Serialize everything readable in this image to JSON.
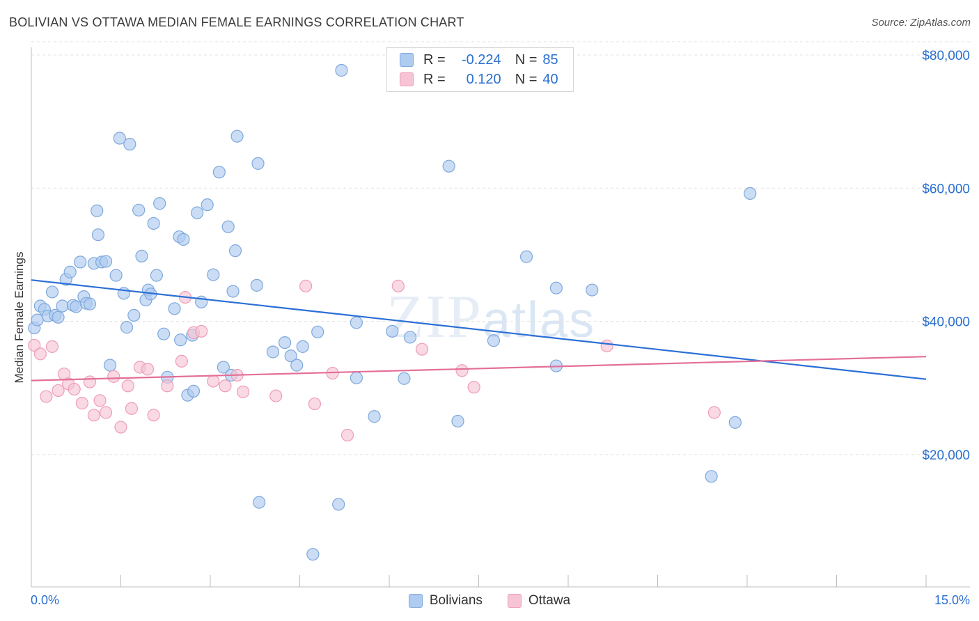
{
  "title": "BOLIVIAN VS OTTAWA MEDIAN FEMALE EARNINGS CORRELATION CHART",
  "source": "Source: ZipAtlas.com",
  "watermark": {
    "a": "ZIP",
    "b": "atlas"
  },
  "legend": {
    "rows": [
      {
        "r_label": "R =",
        "r_value": "-0.224",
        "n_label": "N =",
        "n_value": "85"
      },
      {
        "r_label": "R =",
        "r_value": "0.120",
        "n_label": "N =",
        "n_value": "40"
      }
    ]
  },
  "bottom_legend": [
    "Bolivians",
    "Ottawa"
  ],
  "colors": {
    "blue_fill": "#aecbf0",
    "blue_stroke": "#7fa8dc",
    "blue_line": "#2b6fd6",
    "pink_fill": "#f6c4d4",
    "pink_stroke": "#ef9db7",
    "pink_line": "#e36f98",
    "axis_text": "#2a6fd1",
    "grid": "#e3e3e3"
  },
  "chart_data": {
    "type": "scatter",
    "title": "BOLIVIAN VS OTTAWA MEDIAN FEMALE EARNINGS CORRELATION CHART",
    "xlabel": "",
    "ylabel": "Median Female Earnings",
    "xlim": [
      0,
      15
    ],
    "ylim": [
      0,
      82000
    ],
    "x_tick_labels": [
      "0.0%",
      "15.0%"
    ],
    "y_ticks": [
      20000,
      40000,
      60000,
      80000
    ],
    "y_tick_labels": [
      "$20,000",
      "$40,000",
      "$60,000",
      "$80,000"
    ],
    "grid": true,
    "legend_position": "top-center",
    "series": [
      {
        "name": "Bolivians",
        "r": -0.224,
        "n": 85,
        "trend": [
          [
            0,
            46200
          ],
          [
            15,
            31300
          ]
        ],
        "points": [
          [
            0.05,
            39000
          ],
          [
            0.1,
            40200
          ],
          [
            0.15,
            42300
          ],
          [
            0.22,
            41800
          ],
          [
            0.28,
            40800
          ],
          [
            0.35,
            44400
          ],
          [
            0.4,
            40900
          ],
          [
            0.45,
            40600
          ],
          [
            0.52,
            42300
          ],
          [
            0.58,
            46300
          ],
          [
            0.65,
            47400
          ],
          [
            0.7,
            42400
          ],
          [
            0.75,
            42200
          ],
          [
            0.82,
            48900
          ],
          [
            0.88,
            43700
          ],
          [
            0.92,
            42700
          ],
          [
            0.98,
            42600
          ],
          [
            1.05,
            48700
          ],
          [
            1.1,
            56600
          ],
          [
            1.12,
            53000
          ],
          [
            1.18,
            48900
          ],
          [
            1.25,
            49000
          ],
          [
            1.32,
            33400
          ],
          [
            1.42,
            46900
          ],
          [
            1.48,
            67500
          ],
          [
            1.55,
            44200
          ],
          [
            1.6,
            39100
          ],
          [
            1.65,
            66600
          ],
          [
            1.72,
            40900
          ],
          [
            1.8,
            56700
          ],
          [
            1.85,
            49800
          ],
          [
            1.92,
            43200
          ],
          [
            1.96,
            44700
          ],
          [
            2.0,
            44100
          ],
          [
            2.05,
            54700
          ],
          [
            2.1,
            46900
          ],
          [
            2.15,
            57700
          ],
          [
            2.22,
            38100
          ],
          [
            2.28,
            31600
          ],
          [
            2.4,
            41900
          ],
          [
            2.48,
            52700
          ],
          [
            2.5,
            37200
          ],
          [
            2.55,
            52300
          ],
          [
            2.62,
            28900
          ],
          [
            2.7,
            37900
          ],
          [
            2.72,
            29500
          ],
          [
            2.78,
            56300
          ],
          [
            2.85,
            42900
          ],
          [
            2.95,
            57500
          ],
          [
            3.05,
            47000
          ],
          [
            3.15,
            62400
          ],
          [
            3.22,
            33100
          ],
          [
            3.3,
            54200
          ],
          [
            3.35,
            31900
          ],
          [
            3.45,
            67800
          ],
          [
            3.38,
            44500
          ],
          [
            3.42,
            50600
          ],
          [
            3.8,
            63700
          ],
          [
            3.78,
            45400
          ],
          [
            3.82,
            12800
          ],
          [
            4.05,
            35400
          ],
          [
            4.25,
            36800
          ],
          [
            4.35,
            34800
          ],
          [
            4.45,
            33400
          ],
          [
            4.55,
            36200
          ],
          [
            4.72,
            5000
          ],
          [
            4.8,
            38400
          ],
          [
            5.15,
            12500
          ],
          [
            5.2,
            77700
          ],
          [
            5.45,
            31500
          ],
          [
            5.45,
            39800
          ],
          [
            5.75,
            25700
          ],
          [
            6.05,
            38500
          ],
          [
            6.25,
            31400
          ],
          [
            6.35,
            37600
          ],
          [
            7.0,
            63300
          ],
          [
            7.15,
            25000
          ],
          [
            7.75,
            37100
          ],
          [
            8.3,
            49700
          ],
          [
            8.8,
            33300
          ],
          [
            8.8,
            45000
          ],
          [
            9.4,
            44700
          ],
          [
            11.4,
            16700
          ],
          [
            11.8,
            24800
          ],
          [
            12.05,
            59200
          ]
        ]
      },
      {
        "name": "Ottawa",
        "r": 0.12,
        "n": 40,
        "trend": [
          [
            0,
            31100
          ],
          [
            15,
            34700
          ]
        ],
        "points": [
          [
            0.05,
            36400
          ],
          [
            0.15,
            35100
          ],
          [
            0.25,
            28700
          ],
          [
            0.35,
            36200
          ],
          [
            0.45,
            29600
          ],
          [
            0.55,
            32100
          ],
          [
            0.62,
            30600
          ],
          [
            0.72,
            29800
          ],
          [
            0.85,
            27700
          ],
          [
            0.98,
            30900
          ],
          [
            1.05,
            25900
          ],
          [
            1.15,
            28100
          ],
          [
            1.25,
            26300
          ],
          [
            1.38,
            31700
          ],
          [
            1.5,
            24100
          ],
          [
            1.62,
            30300
          ],
          [
            1.68,
            26900
          ],
          [
            1.82,
            33100
          ],
          [
            1.95,
            32800
          ],
          [
            2.05,
            25900
          ],
          [
            2.28,
            30300
          ],
          [
            2.52,
            34000
          ],
          [
            2.58,
            43600
          ],
          [
            2.72,
            38300
          ],
          [
            2.85,
            38500
          ],
          [
            3.05,
            31000
          ],
          [
            3.25,
            30300
          ],
          [
            3.45,
            31900
          ],
          [
            3.55,
            29400
          ],
          [
            4.1,
            28800
          ],
          [
            4.6,
            45300
          ],
          [
            4.75,
            27600
          ],
          [
            5.05,
            32200
          ],
          [
            5.3,
            22900
          ],
          [
            6.15,
            45300
          ],
          [
            6.55,
            35800
          ],
          [
            7.22,
            32600
          ],
          [
            7.42,
            30100
          ],
          [
            9.65,
            36300
          ],
          [
            11.45,
            26300
          ]
        ]
      }
    ]
  }
}
